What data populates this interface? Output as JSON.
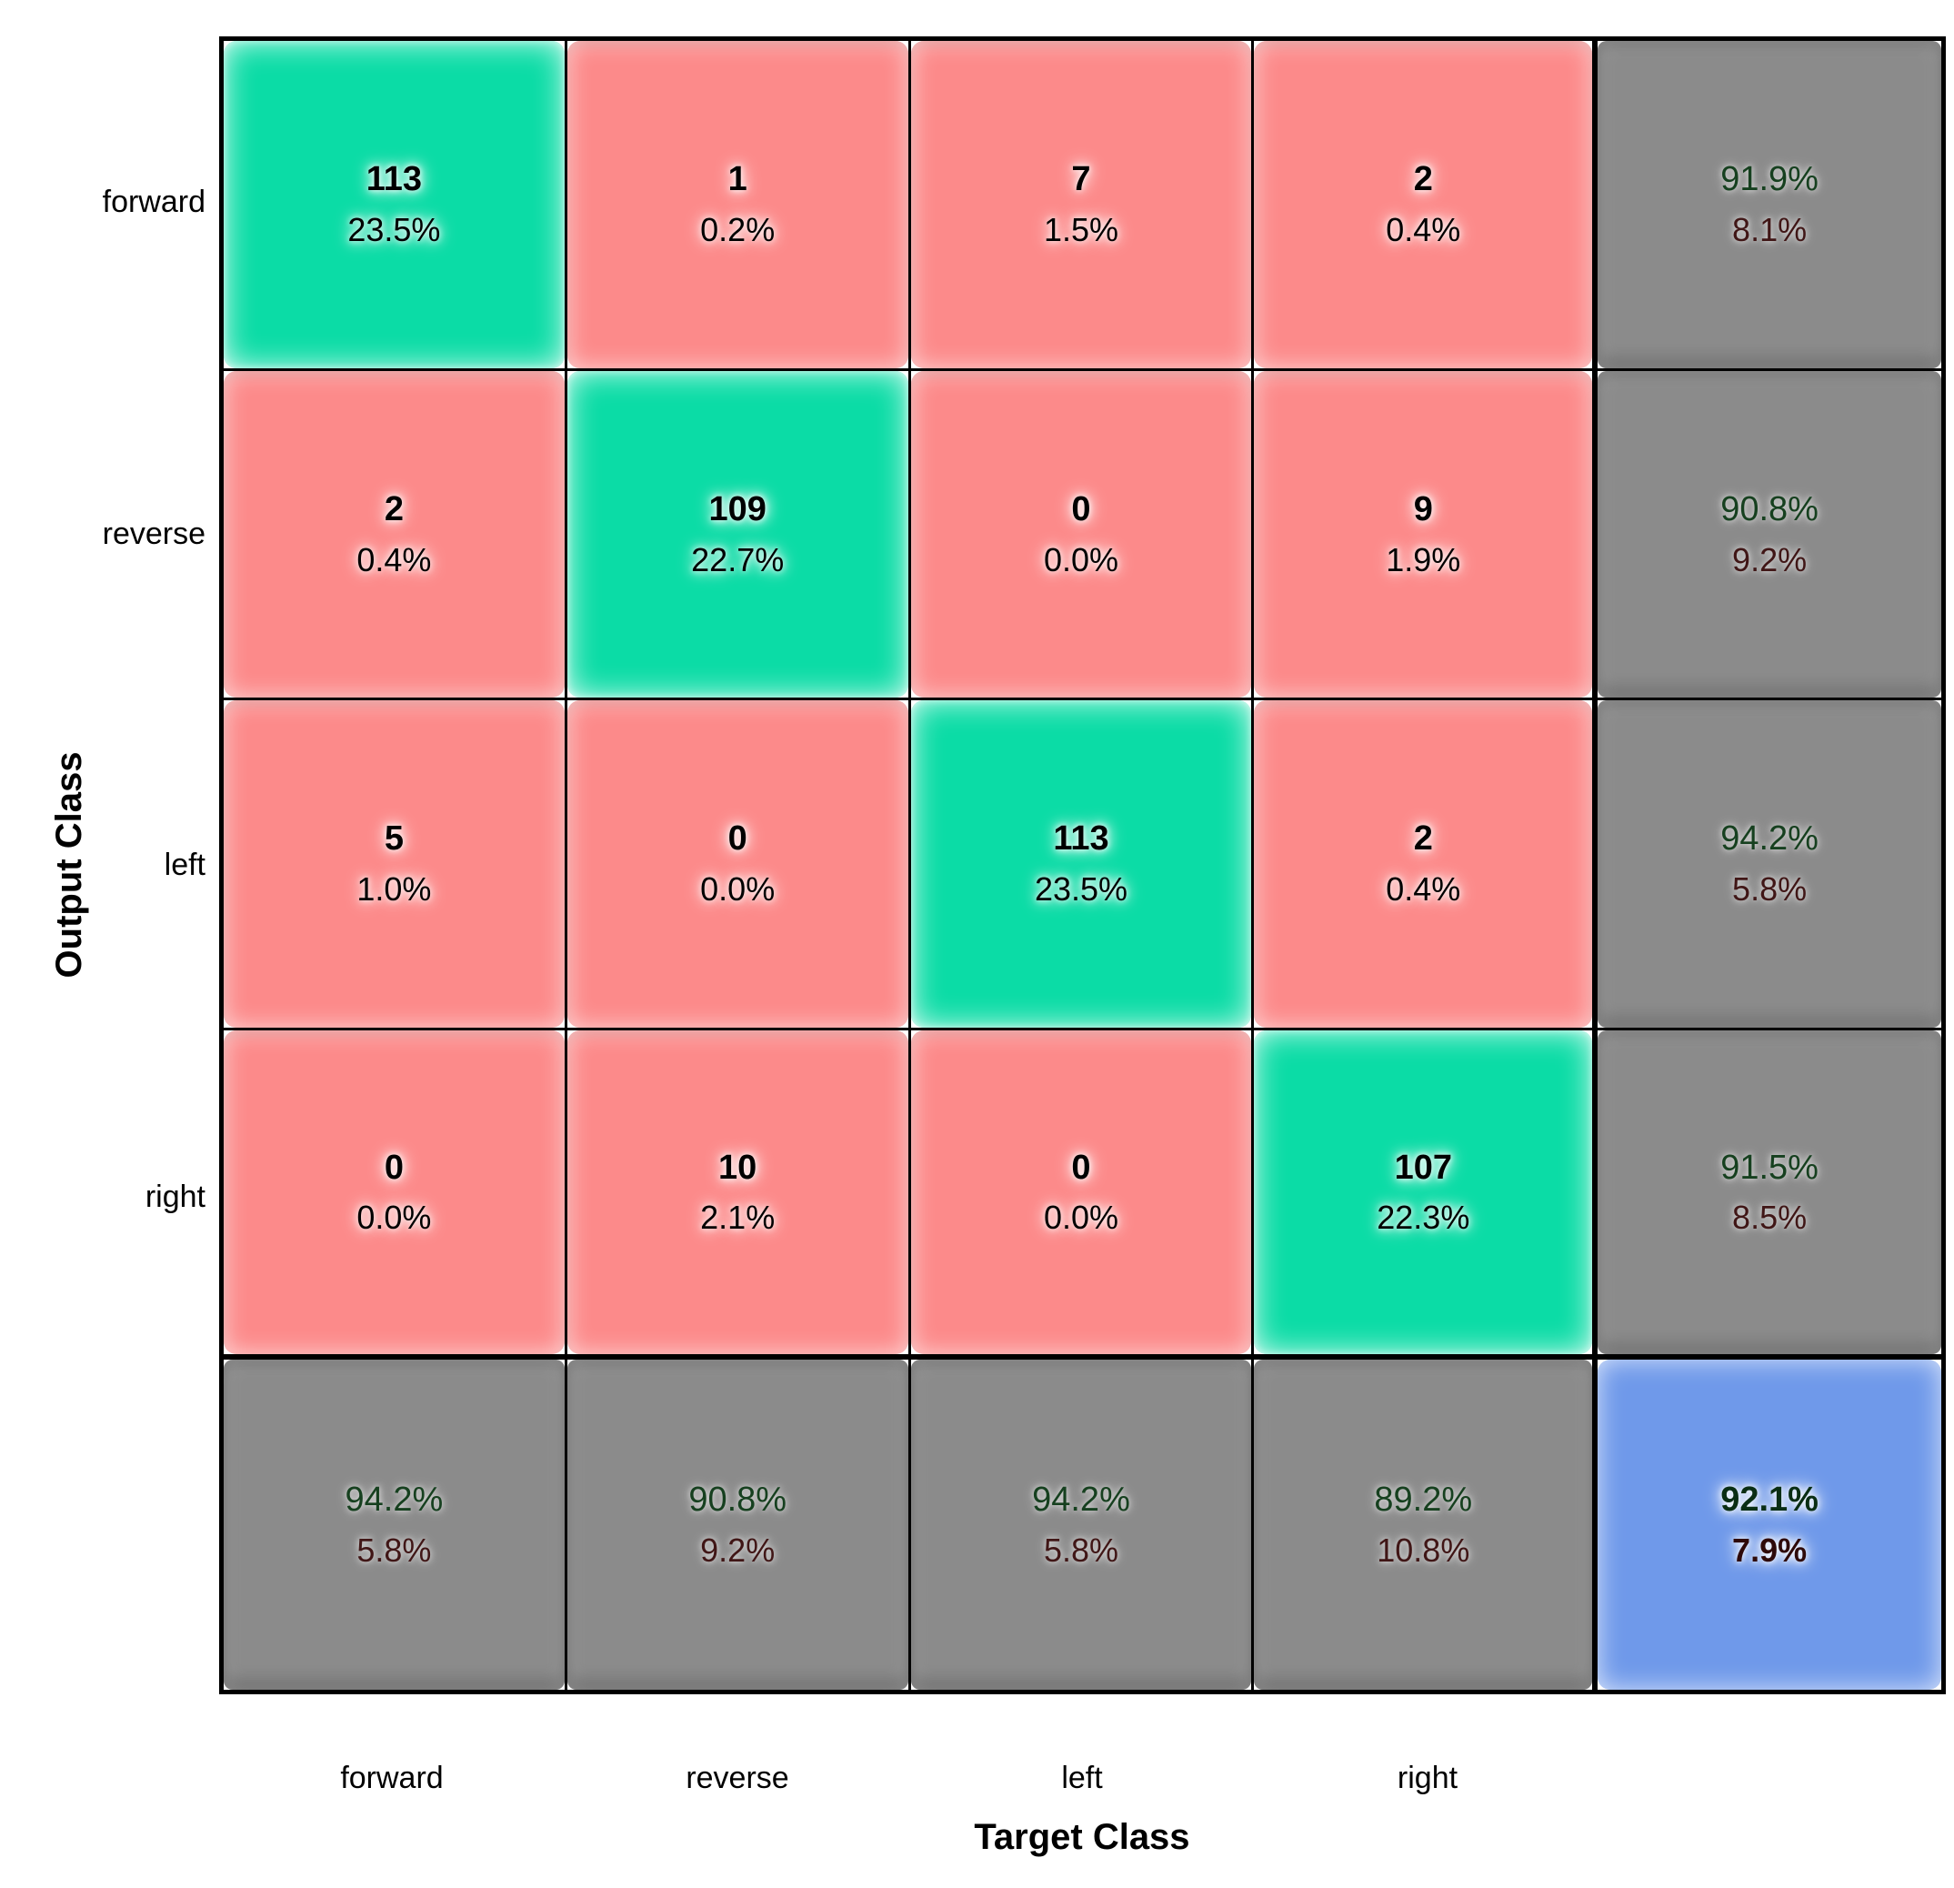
{
  "figure": {
    "x_axis_label": "Target Class",
    "y_axis_label": "Output Class",
    "row_labels": [
      "forward",
      "reverse",
      "left",
      "right"
    ],
    "col_labels": [
      "forward",
      "reverse",
      "left",
      "right"
    ]
  },
  "grid": [
    [
      {
        "v": "113",
        "p": "23.5%",
        "k": "diag"
      },
      {
        "v": "1",
        "p": "0.2%",
        "k": "off"
      },
      {
        "v": "7",
        "p": "1.5%",
        "k": "off"
      },
      {
        "v": "2",
        "p": "0.4%",
        "k": "off"
      },
      {
        "v": "91.9%",
        "p": "8.1%",
        "k": "gray"
      }
    ],
    [
      {
        "v": "2",
        "p": "0.4%",
        "k": "off"
      },
      {
        "v": "109",
        "p": "22.7%",
        "k": "diag"
      },
      {
        "v": "0",
        "p": "0.0%",
        "k": "off"
      },
      {
        "v": "9",
        "p": "1.9%",
        "k": "off"
      },
      {
        "v": "90.8%",
        "p": "9.2%",
        "k": "gray"
      }
    ],
    [
      {
        "v": "5",
        "p": "1.0%",
        "k": "off"
      },
      {
        "v": "0",
        "p": "0.0%",
        "k": "off"
      },
      {
        "v": "113",
        "p": "23.5%",
        "k": "diag"
      },
      {
        "v": "2",
        "p": "0.4%",
        "k": "off"
      },
      {
        "v": "94.2%",
        "p": "5.8%",
        "k": "gray"
      }
    ],
    [
      {
        "v": "0",
        "p": "0.0%",
        "k": "off"
      },
      {
        "v": "10",
        "p": "2.1%",
        "k": "off"
      },
      {
        "v": "0",
        "p": "0.0%",
        "k": "off"
      },
      {
        "v": "107",
        "p": "22.3%",
        "k": "diag"
      },
      {
        "v": "91.5%",
        "p": "8.5%",
        "k": "gray"
      }
    ],
    [
      {
        "v": "94.2%",
        "p": "5.8%",
        "k": "gray"
      },
      {
        "v": "90.8%",
        "p": "9.2%",
        "k": "gray"
      },
      {
        "v": "94.2%",
        "p": "5.8%",
        "k": "gray"
      },
      {
        "v": "89.2%",
        "p": "10.8%",
        "k": "gray"
      },
      {
        "v": "92.1%",
        "p": "7.9%",
        "k": "total"
      }
    ]
  ],
  "chart_data": {
    "type": "heatmap",
    "title": "",
    "xlabel": "Target Class",
    "ylabel": "Output Class",
    "classes": [
      "forward",
      "reverse",
      "left",
      "right"
    ],
    "counts": [
      [
        113,
        1,
        7,
        2
      ],
      [
        2,
        109,
        0,
        9
      ],
      [
        5,
        0,
        113,
        2
      ],
      [
        0,
        10,
        0,
        107
      ]
    ],
    "count_percent_of_total": [
      [
        "23.5%",
        "0.2%",
        "1.5%",
        "0.4%"
      ],
      [
        "0.4%",
        "22.7%",
        "0.0%",
        "1.9%"
      ],
      [
        "1.0%",
        "0.0%",
        "23.5%",
        "0.4%"
      ],
      [
        "0.0%",
        "2.1%",
        "0.0%",
        "22.3%"
      ]
    ],
    "row_summary_correct": [
      "91.9%",
      "90.8%",
      "94.2%",
      "91.5%"
    ],
    "row_summary_incorrect": [
      "8.1%",
      "9.2%",
      "5.8%",
      "8.5%"
    ],
    "col_summary_correct": [
      "94.2%",
      "90.8%",
      "94.2%",
      "89.2%"
    ],
    "col_summary_incorrect": [
      "5.8%",
      "9.2%",
      "5.8%",
      "10.8%"
    ],
    "overall_accuracy": "92.1%",
    "overall_error": "7.9%",
    "legend_position": "none",
    "grid": "on"
  },
  "colors": {
    "diagonal_cell": "#0bdca6",
    "off_diagonal_cell": "#fc8a8a",
    "summary_cell": "#8b8b8b",
    "total_cell": "#6f99ea",
    "summary_text_good": "#16401f",
    "summary_text_bad": "#401616",
    "grid_line": "#000000",
    "background": "#ffffff"
  }
}
